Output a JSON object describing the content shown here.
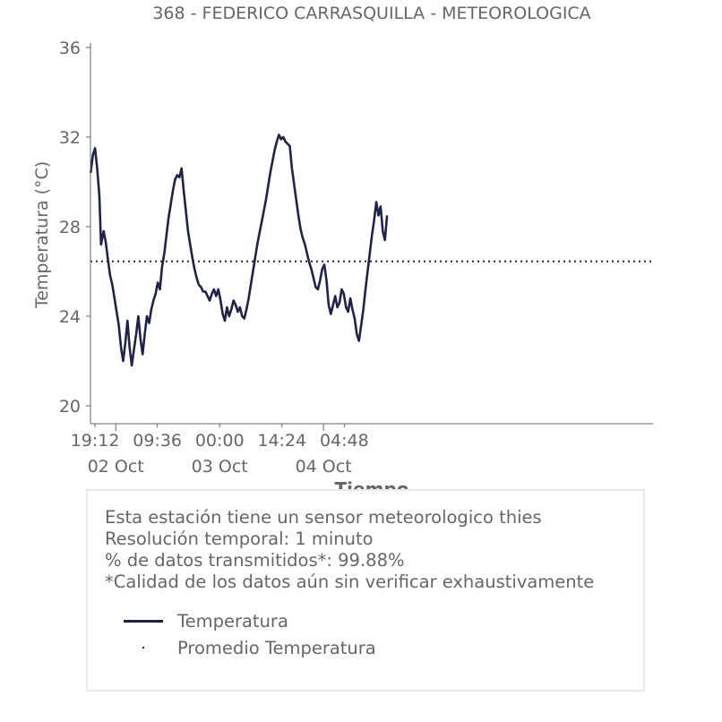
{
  "chart_data": {
    "type": "line",
    "title": "368 - FEDERICO CARRASQUILLA - METEOROLOGICA",
    "xlabel": "Tiempo",
    "ylabel": "Temperatura (°C)",
    "ylim": [
      19.2,
      36.2
    ],
    "yticks": [
      20,
      24,
      28,
      32,
      36
    ],
    "x_unit": "hours from 2 Oct 00:00",
    "xlim": [
      -5.85,
      124.15
    ],
    "xticks": [
      {
        "x": -4.8,
        "label": "19:12",
        "major": false
      },
      {
        "x": 0,
        "label": "",
        "major": true
      },
      {
        "x": 9.6,
        "label": "09:36",
        "major": false
      },
      {
        "x": 24,
        "label": "00:00",
        "major": false
      },
      {
        "x": 38.4,
        "label": "14:24",
        "major": false
      },
      {
        "x": 48,
        "label": "",
        "major": true
      },
      {
        "x": 52.8,
        "label": "04:48",
        "major": false
      }
    ],
    "date_labels": [
      {
        "x": 0,
        "label": "02 Oct"
      },
      {
        "x": 24,
        "label": "03 Oct"
      },
      {
        "x": 48,
        "label": "04 Oct"
      }
    ],
    "series": [
      {
        "name": "Temperatura",
        "color": "#1f2347",
        "points": [
          [
            -5.8,
            30.4
          ],
          [
            -5.3,
            31.2
          ],
          [
            -4.8,
            31.5
          ],
          [
            -4.3,
            30.6
          ],
          [
            -3.8,
            29.4
          ],
          [
            -3.4,
            27.2
          ],
          [
            -2.8,
            27.8
          ],
          [
            -2.3,
            27.3
          ],
          [
            -1.8,
            26.5
          ],
          [
            -1.3,
            25.8
          ],
          [
            -0.8,
            25.4
          ],
          [
            -0.3,
            24.8
          ],
          [
            0.2,
            24.2
          ],
          [
            0.7,
            23.6
          ],
          [
            1.2,
            22.6
          ],
          [
            1.7,
            22.0
          ],
          [
            2.2,
            22.8
          ],
          [
            2.7,
            23.8
          ],
          [
            3.2,
            22.6
          ],
          [
            3.7,
            21.8
          ],
          [
            4.2,
            22.5
          ],
          [
            4.7,
            23.2
          ],
          [
            5.2,
            24.0
          ],
          [
            5.7,
            23.0
          ],
          [
            6.2,
            22.3
          ],
          [
            6.7,
            23.2
          ],
          [
            7.2,
            24.0
          ],
          [
            7.7,
            23.7
          ],
          [
            8.2,
            24.3
          ],
          [
            8.7,
            24.7
          ],
          [
            9.2,
            25.0
          ],
          [
            9.7,
            25.5
          ],
          [
            10.2,
            25.2
          ],
          [
            10.7,
            26.2
          ],
          [
            11.2,
            26.8
          ],
          [
            11.7,
            27.6
          ],
          [
            12.2,
            28.4
          ],
          [
            12.7,
            29.0
          ],
          [
            13.2,
            29.6
          ],
          [
            13.7,
            30.1
          ],
          [
            14.2,
            30.3
          ],
          [
            14.7,
            30.2
          ],
          [
            15.2,
            30.6
          ],
          [
            15.7,
            29.6
          ],
          [
            16.2,
            28.7
          ],
          [
            16.7,
            27.8
          ],
          [
            17.2,
            27.2
          ],
          [
            17.7,
            26.6
          ],
          [
            18.2,
            26.1
          ],
          [
            18.7,
            25.7
          ],
          [
            19.2,
            25.4
          ],
          [
            19.7,
            25.3
          ],
          [
            20.2,
            25.1
          ],
          [
            20.7,
            25.1
          ],
          [
            21.2,
            24.9
          ],
          [
            21.7,
            24.7
          ],
          [
            22.2,
            25.0
          ],
          [
            22.7,
            25.2
          ],
          [
            23.2,
            24.9
          ],
          [
            23.7,
            25.2
          ],
          [
            24.2,
            24.7
          ],
          [
            24.7,
            24.1
          ],
          [
            25.2,
            23.8
          ],
          [
            25.7,
            24.4
          ],
          [
            26.2,
            24.0
          ],
          [
            26.7,
            24.3
          ],
          [
            27.2,
            24.7
          ],
          [
            27.7,
            24.5
          ],
          [
            28.2,
            24.2
          ],
          [
            28.7,
            24.4
          ],
          [
            29.2,
            24.0
          ],
          [
            29.7,
            23.9
          ],
          [
            30.2,
            24.3
          ],
          [
            30.7,
            24.8
          ],
          [
            31.2,
            25.4
          ],
          [
            31.7,
            26.0
          ],
          [
            32.2,
            26.6
          ],
          [
            32.7,
            27.2
          ],
          [
            33.2,
            27.7
          ],
          [
            33.7,
            28.2
          ],
          [
            34.2,
            28.7
          ],
          [
            34.7,
            29.2
          ],
          [
            35.2,
            29.8
          ],
          [
            35.7,
            30.4
          ],
          [
            36.2,
            30.9
          ],
          [
            36.7,
            31.4
          ],
          [
            37.2,
            31.8
          ],
          [
            37.7,
            32.1
          ],
          [
            38.2,
            31.9
          ],
          [
            38.7,
            32.0
          ],
          [
            39.2,
            31.8
          ],
          [
            39.7,
            31.7
          ],
          [
            40.2,
            31.6
          ],
          [
            40.7,
            30.6
          ],
          [
            41.2,
            29.9
          ],
          [
            41.7,
            29.2
          ],
          [
            42.2,
            28.5
          ],
          [
            42.7,
            27.9
          ],
          [
            43.2,
            27.5
          ],
          [
            43.7,
            27.2
          ],
          [
            44.2,
            26.8
          ],
          [
            44.7,
            26.4
          ],
          [
            45.2,
            26.1
          ],
          [
            45.7,
            25.7
          ],
          [
            46.2,
            25.3
          ],
          [
            46.7,
            25.2
          ],
          [
            47.2,
            25.6
          ],
          [
            47.7,
            26.1
          ],
          [
            48.2,
            26.3
          ],
          [
            48.7,
            25.6
          ],
          [
            49.2,
            24.5
          ],
          [
            49.7,
            24.1
          ],
          [
            50.2,
            24.5
          ],
          [
            50.7,
            24.9
          ],
          [
            51.2,
            24.4
          ],
          [
            51.7,
            24.6
          ],
          [
            52.2,
            25.2
          ],
          [
            52.7,
            25.0
          ],
          [
            53.2,
            24.4
          ],
          [
            53.7,
            24.2
          ],
          [
            54.2,
            24.8
          ],
          [
            54.7,
            24.3
          ],
          [
            55.2,
            23.9
          ],
          [
            55.7,
            23.2
          ],
          [
            56.2,
            22.9
          ],
          [
            56.7,
            23.6
          ],
          [
            57.2,
            24.3
          ],
          [
            57.7,
            25.2
          ],
          [
            58.2,
            26.0
          ],
          [
            58.7,
            26.8
          ],
          [
            59.2,
            27.6
          ],
          [
            59.7,
            28.3
          ],
          [
            60.2,
            29.1
          ],
          [
            60.7,
            28.5
          ],
          [
            61.2,
            28.9
          ],
          [
            61.7,
            27.8
          ],
          [
            62.2,
            27.4
          ],
          [
            62.7,
            28.5
          ]
        ]
      },
      {
        "name": "Promedio Temperatura",
        "color": "#1f2347",
        "value": 26.45
      }
    ]
  },
  "info": {
    "lines": [
      "Esta estación tiene un sensor meteorologico thies",
      "Resolución temporal: 1 minuto",
      "% de datos transmitidos*: 99.88%",
      "*Calidad de los datos aún sin verificar exhaustivamente"
    ]
  },
  "legend": {
    "items": [
      {
        "label": "Temperatura"
      },
      {
        "label": "Promedio Temperatura"
      }
    ]
  }
}
